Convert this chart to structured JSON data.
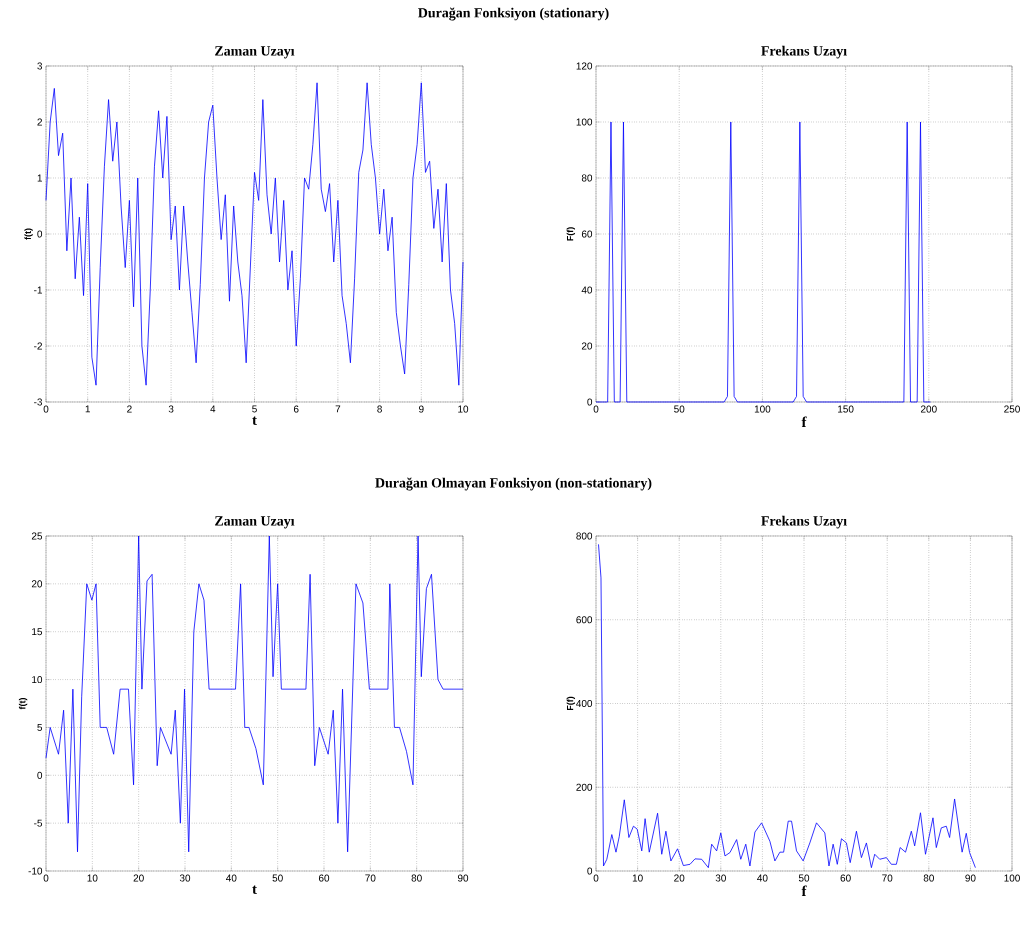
{
  "chart_data": [
    {
      "type": "line",
      "title": "Zaman Uzayı",
      "xlabel": "t",
      "ylabel": "f(t)",
      "annotations": [
        "Durağan Fonksiyon (stationary)"
      ],
      "grid": true,
      "xlim": [
        0,
        10
      ],
      "ylim": [
        -3,
        3
      ],
      "xticks": [
        0,
        1,
        2,
        3,
        4,
        5,
        6,
        7,
        8,
        9,
        10
      ],
      "yticks": [
        -3,
        -2,
        -1,
        0,
        1,
        2,
        3
      ],
      "color": "#0000ff",
      "x": [
        0,
        0.1,
        0.2,
        0.3,
        0.4,
        0.5,
        0.6,
        0.7,
        0.8,
        0.9,
        1.0,
        1.1,
        1.2,
        1.3,
        1.4,
        1.5,
        1.6,
        1.7,
        1.8,
        1.9,
        2.0,
        2.1,
        2.2,
        2.3,
        2.4,
        2.5,
        2.6,
        2.7,
        2.8,
        2.9,
        3.0,
        3.1,
        3.2,
        3.3,
        3.4,
        3.5,
        3.6,
        3.7,
        3.8,
        3.9,
        4.0,
        4.1,
        4.2,
        4.3,
        4.4,
        4.5,
        4.6,
        4.7,
        4.8,
        4.9,
        5.0,
        5.1,
        5.2,
        5.3,
        5.4,
        5.5,
        5.6,
        5.7,
        5.8,
        5.9,
        6.0,
        6.1,
        6.2,
        6.3,
        6.4,
        6.5,
        6.6,
        6.7,
        6.8,
        6.9,
        7.0,
        7.1,
        7.2,
        7.3,
        7.4,
        7.5,
        7.6,
        7.7,
        7.8,
        7.9,
        8.0,
        8.1,
        8.2,
        8.3,
        8.4,
        8.5,
        8.6,
        8.7,
        8.8,
        8.9,
        9.0,
        9.1,
        9.2,
        9.3,
        9.4,
        9.5,
        9.6,
        9.7,
        9.8,
        9.9,
        10.0
      ],
      "values": [
        0.6,
        2.0,
        2.6,
        1.4,
        1.8,
        -0.3,
        1.0,
        -0.8,
        0.3,
        -1.1,
        0.9,
        -2.2,
        -2.7,
        -0.6,
        1.2,
        2.4,
        1.3,
        2.0,
        0.5,
        -0.6,
        0.6,
        -1.3,
        1.0,
        -2.0,
        -2.7,
        -1.0,
        1.2,
        2.2,
        1.0,
        2.1,
        -0.1,
        0.5,
        -1.0,
        0.5,
        -0.5,
        -1.4,
        -2.3,
        -0.9,
        1.0,
        2.0,
        2.3,
        1.0,
        -0.1,
        0.7,
        -1.2,
        0.5,
        -0.5,
        -1.1,
        -2.3,
        -0.6,
        1.1,
        0.6,
        2.4,
        0.7,
        0.0,
        1.0,
        -0.5,
        0.6,
        -1.0,
        -0.3,
        -2.0,
        -0.8,
        1.0,
        0.8,
        1.6,
        2.7,
        0.8,
        0.4,
        0.9,
        -0.5,
        0.6,
        -1.1,
        -1.6,
        -2.3,
        -0.8,
        1.1,
        1.5,
        2.7,
        1.6,
        1.0,
        0.0,
        0.8,
        -0.3,
        0.3,
        -1.4,
        -2.0,
        -2.5,
        -0.9,
        1.0,
        1.6,
        2.7,
        1.1,
        1.3,
        0.1,
        0.8,
        -0.5,
        0.9,
        -1.0,
        -1.6,
        -2.7,
        -0.5
      ]
    },
    {
      "type": "line",
      "title": "Frekans Uzayı",
      "xlabel": "f",
      "ylabel": "F(f)",
      "grid": true,
      "xlim": [
        0,
        250
      ],
      "ylim": [
        0,
        120
      ],
      "xticks": [
        0,
        50,
        100,
        150,
        200,
        250
      ],
      "yticks": [
        0,
        20,
        40,
        60,
        80,
        100,
        120
      ],
      "color": "#0000ff",
      "x": [
        0,
        7,
        9,
        11,
        14.5,
        16.5,
        18.5,
        77,
        79,
        81,
        83,
        85,
        118.5,
        120.5,
        122.5,
        124.5,
        126.5,
        185,
        187,
        189,
        193,
        195,
        197,
        201
      ],
      "values": [
        0,
        0,
        100,
        0,
        0,
        100,
        0,
        0,
        2,
        100,
        2,
        0,
        0,
        2,
        100,
        2,
        0,
        0,
        100,
        0,
        0,
        100,
        0,
        0
      ]
    },
    {
      "type": "line",
      "title": "Zaman Uzayı",
      "xlabel": "t",
      "ylabel": "f(t)",
      "annotations": [
        "Durağan Olmayan Fonksiyon (non-stationary)"
      ],
      "grid": true,
      "xlim": [
        0,
        90
      ],
      "ylim": [
        -10,
        25
      ],
      "xticks": [
        0,
        10,
        20,
        30,
        40,
        50,
        60,
        70,
        80,
        90
      ],
      "yticks": [
        -10,
        -5,
        0,
        5,
        10,
        15,
        20,
        25
      ],
      "color": "#0000ff",
      "x": [
        0,
        0.9,
        2.7,
        3.8,
        4.8,
        5.8,
        6.8,
        7.7,
        8.8,
        9.9,
        10.8,
        11.7,
        13.1,
        14.6,
        16.0,
        17.8,
        18.9,
        20,
        20.7,
        21.8,
        22.9,
        24.0,
        24.7,
        27.0,
        27.9,
        29.0,
        29.9,
        30.8,
        31.9,
        33.0,
        34.1,
        35.2,
        40.9,
        42.0,
        42.9,
        43.8,
        45.3,
        46.9,
        48.2,
        49.0,
        50.0,
        50.8,
        56.1,
        57.0,
        58.0,
        59.0,
        60.9,
        62.0,
        63.0,
        64.0,
        65.1,
        66.9,
        68.4,
        69.8,
        73.8,
        74.2,
        75.2,
        76.3,
        77.8,
        79.2,
        80.3,
        81.0,
        82.1,
        83.2,
        84.6,
        85.7,
        90
      ],
      "values": [
        1.8,
        5,
        2.2,
        6.8,
        -5,
        9,
        -8,
        8.2,
        20,
        18.3,
        20,
        5,
        5,
        2.2,
        9,
        9,
        -1,
        25,
        9,
        20.3,
        21,
        1,
        5,
        2.2,
        6.8,
        -5,
        9,
        -8,
        15,
        20,
        18.3,
        9,
        9,
        20,
        5,
        5,
        2.8,
        -1,
        25,
        10.3,
        20,
        9,
        9,
        21,
        1,
        5,
        2.2,
        6.8,
        -5,
        9,
        -8,
        20,
        18,
        9,
        9,
        20,
        5,
        5,
        2.5,
        -1,
        25,
        10.3,
        19.5,
        21,
        10,
        9,
        9
      ]
    },
    {
      "type": "line",
      "title": "Frekans Uzayı",
      "xlabel": "f",
      "ylabel": "F(f)",
      "grid": true,
      "xlim": [
        0,
        100
      ],
      "ylim": [
        0,
        800
      ],
      "xticks": [
        0,
        10,
        20,
        30,
        40,
        50,
        60,
        70,
        80,
        90,
        100
      ],
      "yticks": [
        0,
        200,
        400,
        600,
        800
      ],
      "color": "#0000ff",
      "x": [
        0.6,
        1.2,
        1.8,
        2.6,
        3.8,
        4.8,
        5.6,
        6.8,
        7.9,
        9.0,
        9.9,
        11.0,
        11.8,
        12.8,
        14.8,
        15.8,
        16.8,
        18.0,
        19.6,
        21.0,
        22.6,
        23.8,
        25.4,
        27.0,
        27.8,
        29.0,
        30.0,
        31.0,
        32.2,
        33.8,
        34.8,
        36.0,
        37.0,
        38.2,
        39.8,
        41.8,
        43.0,
        44.2,
        45.1,
        46.2,
        47.0,
        48.2,
        49.8,
        51.4,
        53.0,
        55.0,
        56.0,
        57.0,
        58.0,
        59.0,
        60.2,
        61.1,
        62.6,
        63.8,
        65.0,
        66.2,
        67.0,
        68.2,
        69.8,
        71.0,
        72.2,
        73.1,
        74.4,
        75.8,
        76.6,
        78.0,
        79.2,
        81.0,
        81.8,
        83.0,
        84.2,
        85.0,
        86.2,
        88.0,
        89.0,
        89.8,
        91.2
      ],
      "values": [
        780,
        700,
        12,
        28,
        87,
        45,
        83,
        170,
        80,
        107,
        100,
        48,
        125,
        45,
        138,
        40,
        95,
        24,
        53,
        13,
        16,
        29,
        28,
        8,
        64,
        48,
        91,
        36,
        44,
        75,
        28,
        64,
        12,
        93,
        115,
        71,
        24,
        45,
        45,
        119,
        119,
        48,
        24,
        67,
        115,
        91,
        12,
        64,
        16,
        77,
        67,
        20,
        95,
        32,
        67,
        8,
        40,
        28,
        32,
        16,
        16,
        56,
        45,
        95,
        60,
        139,
        40,
        127,
        56,
        103,
        107,
        80,
        172,
        45,
        90,
        44,
        8
      ]
    }
  ]
}
